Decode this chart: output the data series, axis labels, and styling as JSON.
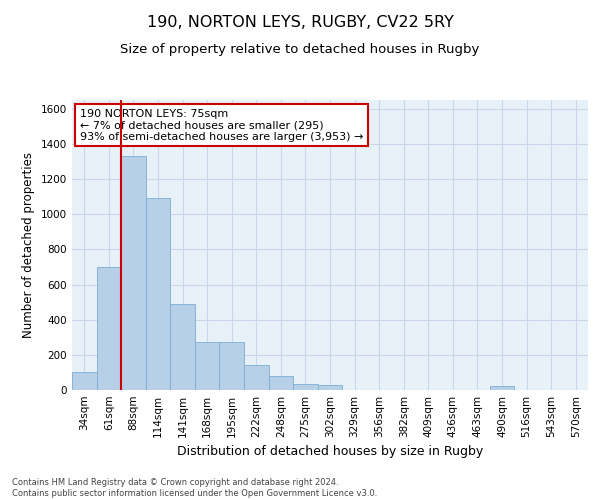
{
  "title": "190, NORTON LEYS, RUGBY, CV22 5RY",
  "subtitle": "Size of property relative to detached houses in Rugby",
  "xlabel": "Distribution of detached houses by size in Rugby",
  "ylabel": "Number of detached properties",
  "footer": "Contains HM Land Registry data © Crown copyright and database right 2024.\nContains public sector information licensed under the Open Government Licence v3.0.",
  "categories": [
    "34sqm",
    "61sqm",
    "88sqm",
    "114sqm",
    "141sqm",
    "168sqm",
    "195sqm",
    "222sqm",
    "248sqm",
    "275sqm",
    "302sqm",
    "329sqm",
    "356sqm",
    "382sqm",
    "409sqm",
    "436sqm",
    "463sqm",
    "490sqm",
    "516sqm",
    "543sqm",
    "570sqm"
  ],
  "values": [
    105,
    700,
    1330,
    1090,
    490,
    275,
    275,
    140,
    80,
    35,
    30,
    0,
    0,
    0,
    0,
    0,
    0,
    20,
    0,
    0,
    0
  ],
  "bar_color": "#b8cfe8",
  "bar_edge_color": "#7aafd4",
  "vline_x": 1.5,
  "vline_color": "#cc0000",
  "annotation_text": "190 NORTON LEYS: 75sqm\n← 7% of detached houses are smaller (295)\n93% of semi-detached houses are larger (3,953) →",
  "annotation_box_color": "#ffffff",
  "annotation_box_edge": "#cc0000",
  "ylim": [
    0,
    1650
  ],
  "yticks": [
    0,
    200,
    400,
    600,
    800,
    1000,
    1200,
    1400,
    1600
  ],
  "grid_color": "#c8d8ea",
  "background_color": "#e8f0f8",
  "title_fontsize": 11.5,
  "subtitle_fontsize": 9.5,
  "ylabel_fontsize": 8.5,
  "xlabel_fontsize": 9,
  "tick_fontsize": 7.5,
  "annotation_fontsize": 8,
  "footer_fontsize": 6
}
